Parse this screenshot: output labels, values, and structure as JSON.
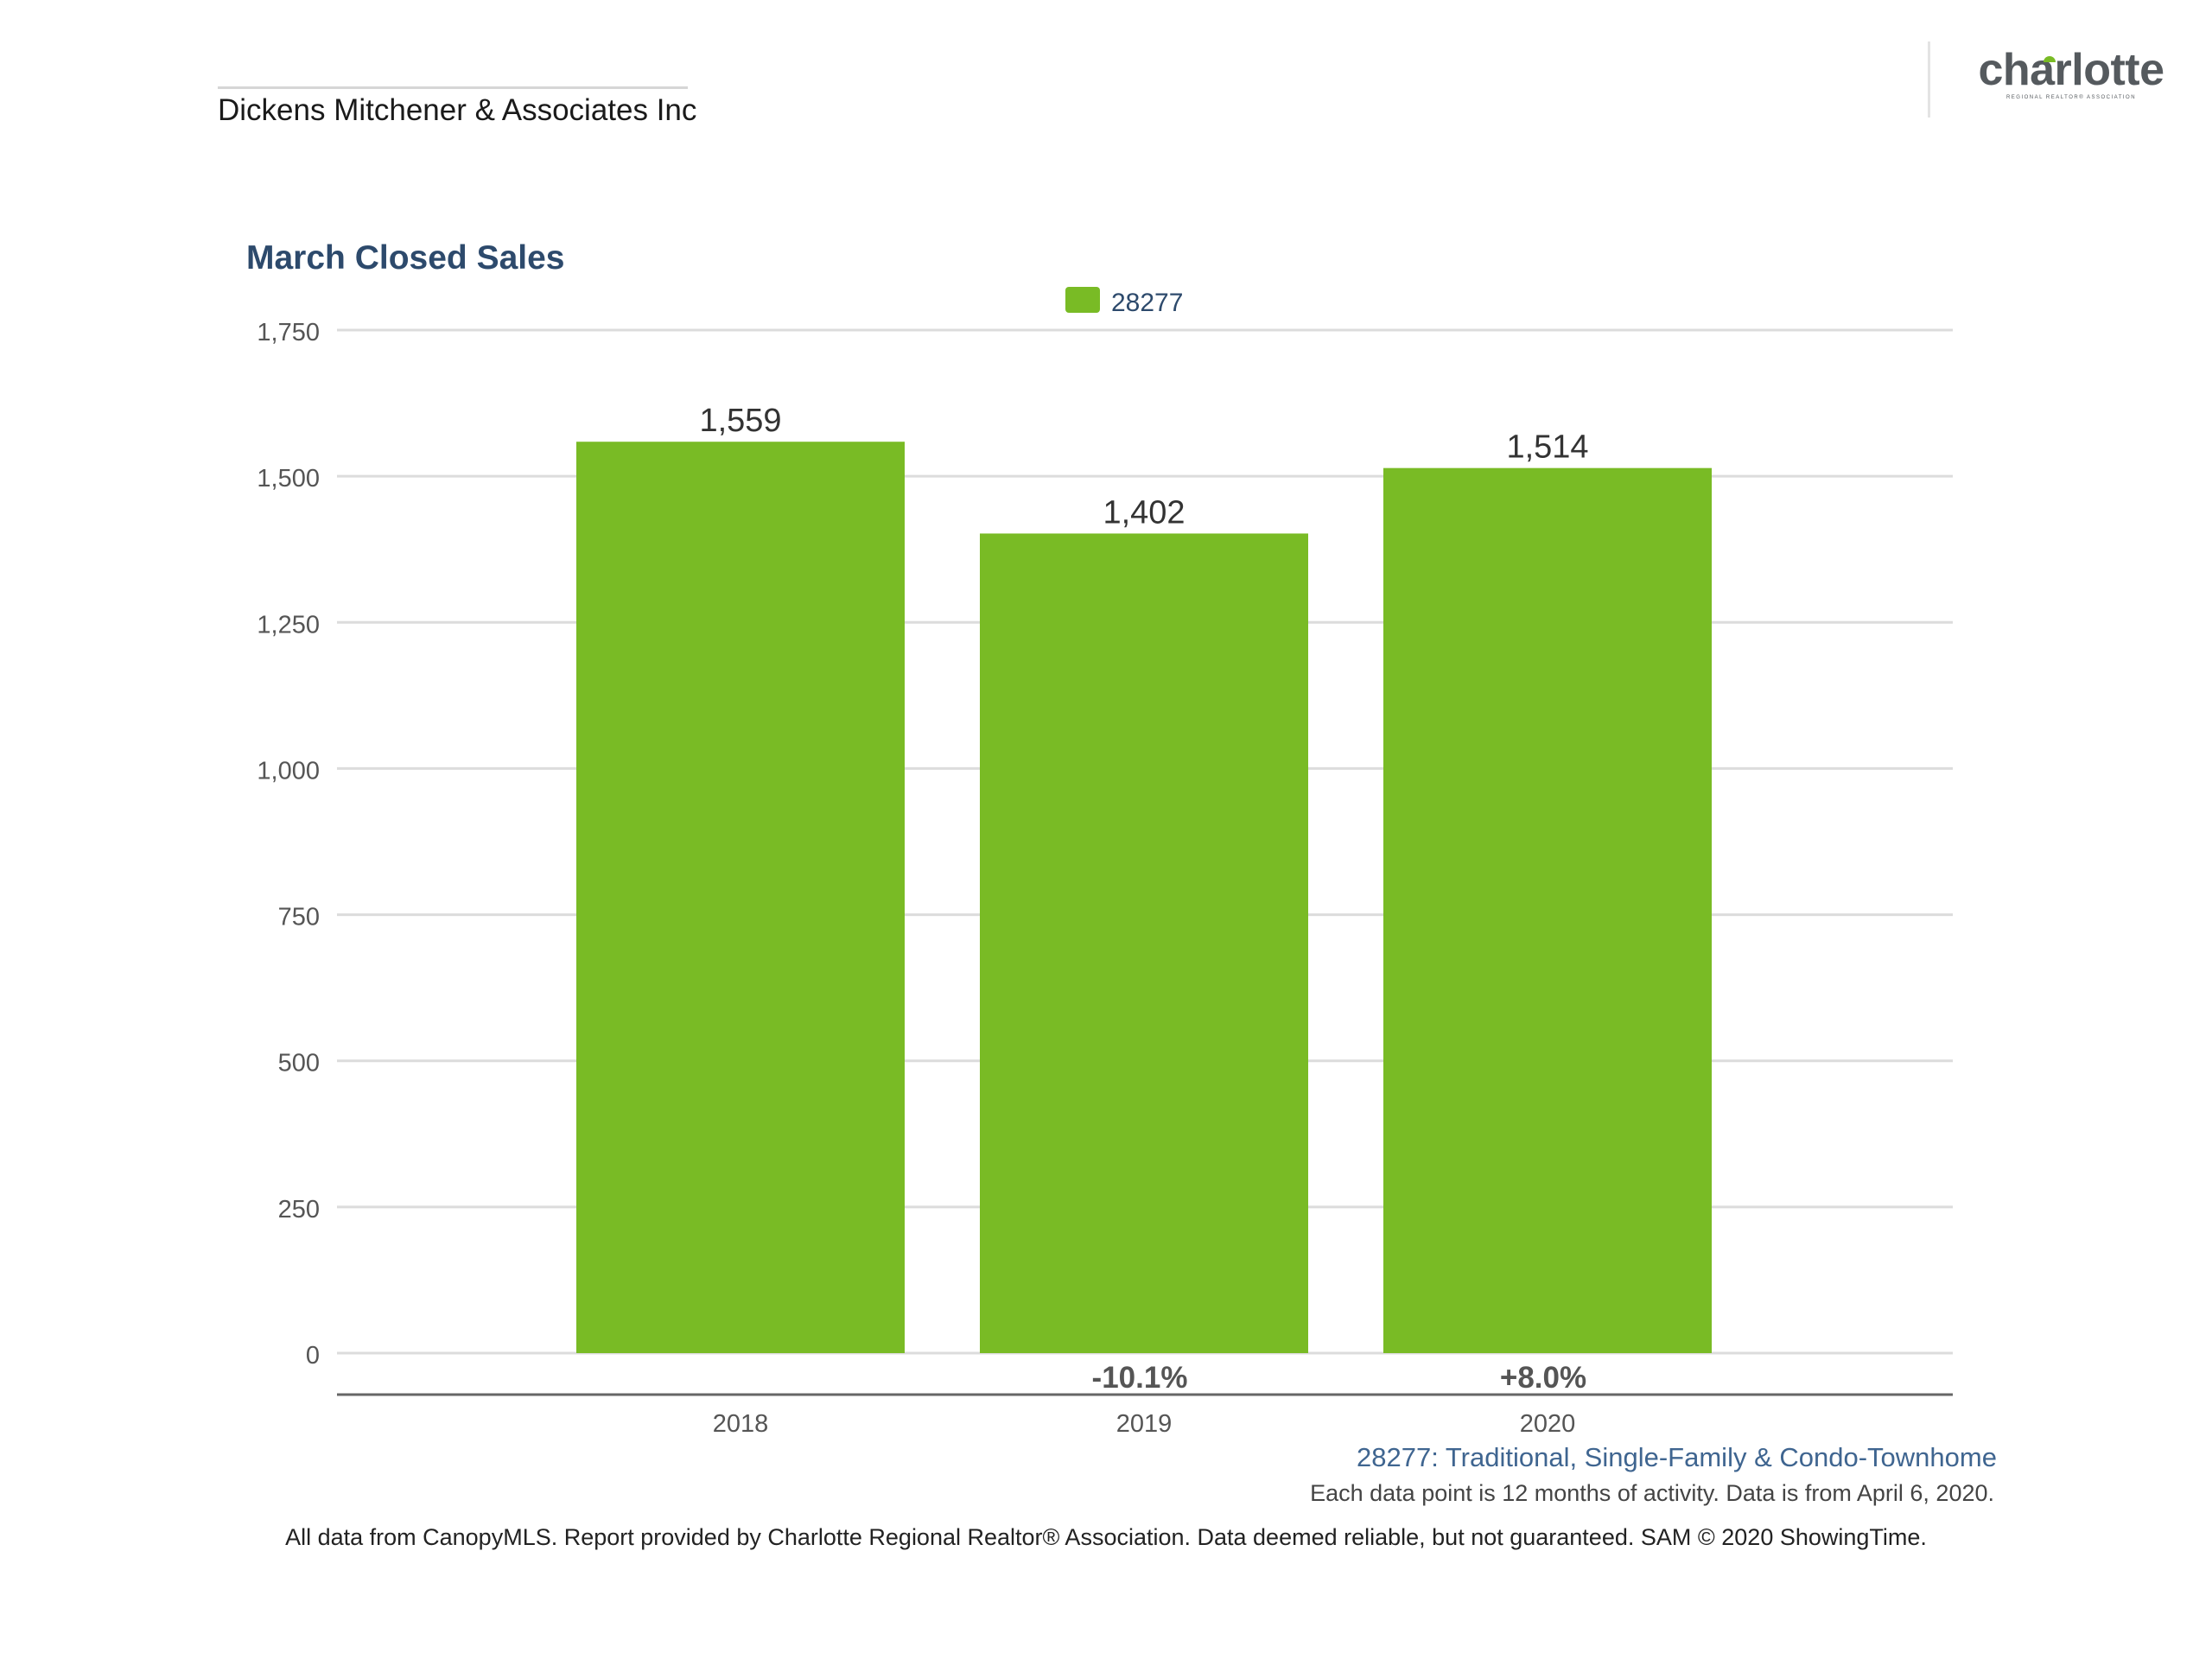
{
  "header": {
    "company": "Dickens Mitchener & Associates Inc",
    "logo_word": "charlotte",
    "logo_subtitle": "REGIONAL REALTOR® ASSOCIATION"
  },
  "colors": {
    "bar": "#79bb25",
    "title": "#2d4a6c",
    "axis_text": "#555555",
    "gridline": "#dcdcdc",
    "baseline": "#666666"
  },
  "chart_data": {
    "type": "bar",
    "title": "March Closed Sales",
    "categories": [
      "2018",
      "2019",
      "2020"
    ],
    "series": [
      {
        "name": "28277",
        "values": [
          1559,
          1402,
          1514
        ]
      }
    ],
    "data_labels": [
      "1,559",
      "1,402",
      "1,514"
    ],
    "change_labels": [
      "",
      "-10.1%",
      "+8.0%"
    ],
    "yticks": [
      "0",
      "250",
      "500",
      "750",
      "1,000",
      "1,250",
      "1,500",
      "1,750"
    ],
    "ylim": [
      0,
      1750
    ],
    "grid": true,
    "legend": "top-center",
    "xlabel": "",
    "ylabel": ""
  },
  "footer": {
    "series_caption": "28277: Traditional, Single-Family & Condo-Townhome",
    "note": "Each data point is 12 months of activity. Data is from April 6, 2020.",
    "disclaimer": "All data from CanopyMLS. Report provided by Charlotte Regional Realtor® Association. Data deemed reliable, but not guaranteed. SAM © 2020 ShowingTime."
  }
}
